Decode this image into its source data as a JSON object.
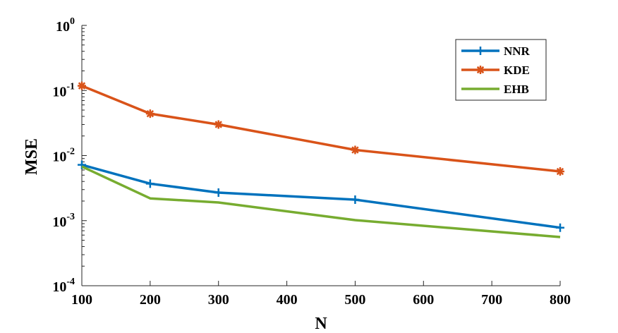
{
  "chart_data": {
    "type": "line",
    "title": "",
    "xlabel": "N",
    "ylabel": "MSE",
    "xlim": [
      100,
      800
    ],
    "ylim": [
      0.0001,
      1
    ],
    "yscale": "log",
    "grid": false,
    "legend_position": "top-right",
    "x_ticks": [
      100,
      200,
      300,
      400,
      500,
      600,
      700,
      800
    ],
    "x_tick_labels": [
      "100",
      "200",
      "300",
      "400",
      "500",
      "600",
      "700",
      "800"
    ],
    "y_ticks": [
      {
        "value": 0.0001,
        "base": "10",
        "exp": "-4"
      },
      {
        "value": 0.001,
        "base": "10",
        "exp": "-3"
      },
      {
        "value": 0.01,
        "base": "10",
        "exp": "-2"
      },
      {
        "value": 0.1,
        "base": "10",
        "exp": "-1"
      },
      {
        "value": 1,
        "base": "10",
        "exp": "0"
      }
    ],
    "series": [
      {
        "name": "NNR",
        "color": "#0072BD",
        "marker": "plus",
        "x": [
          100,
          200,
          300,
          500,
          800
        ],
        "y": [
          0.0072,
          0.0037,
          0.0027,
          0.0021,
          0.00078
        ]
      },
      {
        "name": "KDE",
        "color": "#D95319",
        "marker": "asterisk",
        "x": [
          100,
          200,
          300,
          500,
          800
        ],
        "y": [
          0.118,
          0.044,
          0.03,
          0.0122,
          0.0057
        ]
      },
      {
        "name": "EHB",
        "color": "#77AC30",
        "marker": "none",
        "x": [
          100,
          200,
          300,
          500,
          800
        ],
        "y": [
          0.0068,
          0.0022,
          0.0019,
          0.00102,
          0.00056
        ]
      }
    ]
  }
}
